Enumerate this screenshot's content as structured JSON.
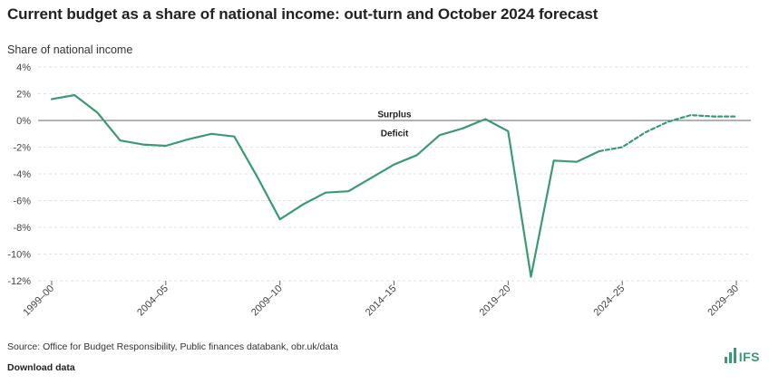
{
  "header": {
    "title": "Current budget as a share of national income: out-turn and October 2024 forecast"
  },
  "footer": {
    "source": "Source: Office for Budget Responsibility, Public finances databank, obr.uk/data",
    "download_label": "Download data",
    "logo_text": "IFS",
    "logo_icon": "bar-chart-icon",
    "accent_color": "#3a9a72"
  },
  "chart_data": {
    "type": "line",
    "title": "Current budget as a share of national income: out-turn and October 2024 forecast",
    "ylabel": "Share of national income",
    "xlabel": "",
    "ylim": [
      -12,
      4
    ],
    "yticks": [
      4,
      2,
      0,
      -2,
      -4,
      -6,
      -8,
      -10,
      -12
    ],
    "ytick_labels": [
      "4%",
      "2%",
      "0%",
      "-2%",
      "-4%",
      "-6%",
      "-8%",
      "-10%",
      "-12%"
    ],
    "x": [
      "1999–00",
      "2000–01",
      "2001–02",
      "2002–03",
      "2003–04",
      "2004–05",
      "2005–06",
      "2006–07",
      "2007–08",
      "2008–09",
      "2009–10",
      "2010–11",
      "2011–12",
      "2012–13",
      "2013–14",
      "2014–15",
      "2015–16",
      "2016–17",
      "2017–18",
      "2018–19",
      "2019–20",
      "2020–21",
      "2021–22",
      "2022–23",
      "2023–24",
      "2024–25",
      "2025–26",
      "2026–27",
      "2027–28",
      "2028–29",
      "2029–30"
    ],
    "xtick_labels": [
      "1999–00",
      "2004–05",
      "2009–10",
      "2014–15",
      "2019–20",
      "2024–25",
      "2029–30"
    ],
    "grid": true,
    "color": "#3a9a72",
    "annotations": [
      {
        "text": "Surplus",
        "value": 0.5
      },
      {
        "text": "Deficit",
        "value": -0.9
      }
    ],
    "series": [
      {
        "style": "solid",
        "values": [
          1.6,
          1.9,
          0.6,
          -1.5,
          -1.8,
          -1.9,
          -1.4,
          -1.0,
          -1.2,
          -4.2,
          -7.4,
          -6.3,
          -5.4,
          -5.3,
          -4.3,
          -3.3,
          -2.6,
          -1.1,
          -0.6,
          0.1,
          -0.8,
          -11.7,
          -3.0,
          -3.1,
          -2.3,
          null,
          null,
          null,
          null,
          null,
          null
        ]
      },
      {
        "style": "dashed",
        "values": [
          null,
          null,
          null,
          null,
          null,
          null,
          null,
          null,
          null,
          null,
          null,
          null,
          null,
          null,
          null,
          null,
          null,
          null,
          null,
          null,
          null,
          null,
          null,
          null,
          -2.3,
          -2.0,
          -0.9,
          -0.1,
          0.4,
          0.3,
          0.3
        ]
      }
    ]
  }
}
